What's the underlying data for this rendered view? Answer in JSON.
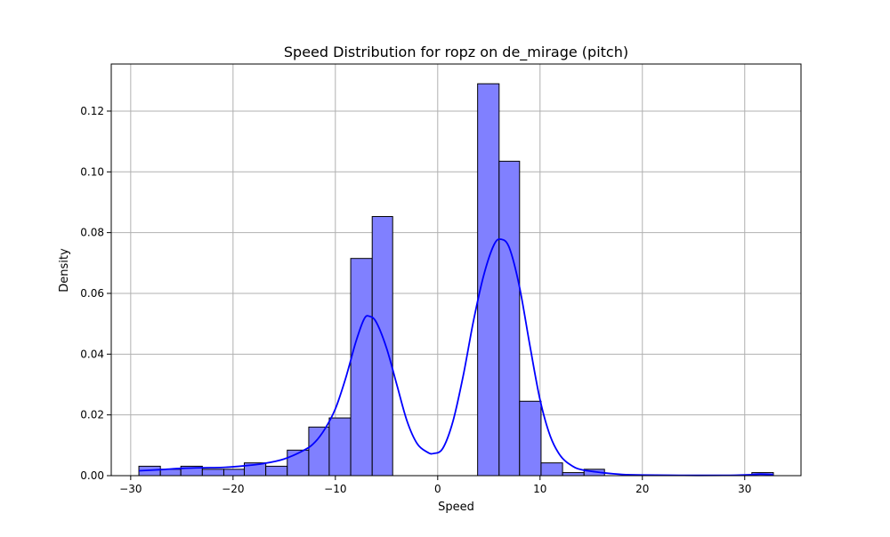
{
  "chart_data": {
    "type": "bar",
    "title": "Speed Distribution for ropz on de_mirage (pitch)",
    "xlabel": "Speed",
    "ylabel": "Density",
    "xlim": [
      -31.9,
      35.5
    ],
    "ylim": [
      0,
      0.1355
    ],
    "xticks": [
      -30,
      -20,
      -10,
      0,
      10,
      20,
      30
    ],
    "xtick_labels": [
      "−30",
      "−20",
      "−10",
      "0",
      "10",
      "20",
      "30"
    ],
    "yticks": [
      0.0,
      0.02,
      0.04,
      0.06,
      0.08,
      0.1,
      0.12
    ],
    "ytick_labels": [
      "0.00",
      "0.02",
      "0.04",
      "0.06",
      "0.08",
      "0.10",
      "0.12"
    ],
    "grid": true,
    "bar_color": "#8080ff",
    "bar_edge_color": "#000000",
    "kde_color": "#0000ff",
    "bins": [
      {
        "x0": -29.2,
        "x1": -27.1,
        "density": 0.0031
      },
      {
        "x0": -27.1,
        "x1": -25.1,
        "density": 0.0021
      },
      {
        "x0": -25.1,
        "x1": -23.0,
        "density": 0.0031
      },
      {
        "x0": -23.0,
        "x1": -20.9,
        "density": 0.0021
      },
      {
        "x0": -20.9,
        "x1": -18.9,
        "density": 0.0021
      },
      {
        "x0": -18.9,
        "x1": -16.8,
        "density": 0.0042
      },
      {
        "x0": -16.8,
        "x1": -14.7,
        "density": 0.0031
      },
      {
        "x0": -14.7,
        "x1": -12.6,
        "density": 0.0084
      },
      {
        "x0": -12.6,
        "x1": -10.6,
        "density": 0.016
      },
      {
        "x0": -10.6,
        "x1": -8.5,
        "density": 0.019
      },
      {
        "x0": -8.5,
        "x1": -6.4,
        "density": 0.0715
      },
      {
        "x0": -6.4,
        "x1": -4.4,
        "density": 0.0853
      },
      {
        "x0": -4.4,
        "x1": -2.3,
        "density": 0
      },
      {
        "x0": -2.3,
        "x1": -0.2,
        "density": 0
      },
      {
        "x0": -0.2,
        "x1": 1.8,
        "density": 0
      },
      {
        "x0": 1.8,
        "x1": 3.9,
        "density": 0
      },
      {
        "x0": 3.9,
        "x1": 6.0,
        "density": 0.129
      },
      {
        "x0": 6.0,
        "x1": 8.0,
        "density": 0.1035
      },
      {
        "x0": 8.0,
        "x1": 10.1,
        "density": 0.0245
      },
      {
        "x0": 10.1,
        "x1": 12.2,
        "density": 0.0042
      },
      {
        "x0": 12.2,
        "x1": 14.3,
        "density": 0.001
      },
      {
        "x0": 14.3,
        "x1": 16.3,
        "density": 0.0021
      },
      {
        "x0": 30.7,
        "x1": 32.8,
        "density": 0.001
      }
    ],
    "kde": [
      {
        "x": -29.2,
        "y": 0.0016
      },
      {
        "x": -27.0,
        "y": 0.002
      },
      {
        "x": -25.0,
        "y": 0.0024
      },
      {
        "x": -23.0,
        "y": 0.0026
      },
      {
        "x": -21.0,
        "y": 0.0027
      },
      {
        "x": -19.0,
        "y": 0.0032
      },
      {
        "x": -17.0,
        "y": 0.004
      },
      {
        "x": -15.0,
        "y": 0.0055
      },
      {
        "x": -13.0,
        "y": 0.0085
      },
      {
        "x": -12.0,
        "y": 0.011
      },
      {
        "x": -11.0,
        "y": 0.0155
      },
      {
        "x": -10.0,
        "y": 0.022
      },
      {
        "x": -9.0,
        "y": 0.032
      },
      {
        "x": -8.0,
        "y": 0.044
      },
      {
        "x": -7.2,
        "y": 0.0515
      },
      {
        "x": -6.7,
        "y": 0.0525
      },
      {
        "x": -6.0,
        "y": 0.0505
      },
      {
        "x": -5.0,
        "y": 0.042
      },
      {
        "x": -4.0,
        "y": 0.03
      },
      {
        "x": -3.0,
        "y": 0.018
      },
      {
        "x": -2.0,
        "y": 0.0105
      },
      {
        "x": -1.0,
        "y": 0.0077
      },
      {
        "x": -0.4,
        "y": 0.0073
      },
      {
        "x": 0.5,
        "y": 0.009
      },
      {
        "x": 1.5,
        "y": 0.018
      },
      {
        "x": 2.5,
        "y": 0.033
      },
      {
        "x": 3.5,
        "y": 0.051
      },
      {
        "x": 4.5,
        "y": 0.066
      },
      {
        "x": 5.5,
        "y": 0.076
      },
      {
        "x": 6.2,
        "y": 0.0778
      },
      {
        "x": 7.0,
        "y": 0.075
      },
      {
        "x": 8.0,
        "y": 0.062
      },
      {
        "x": 9.0,
        "y": 0.043
      },
      {
        "x": 10.0,
        "y": 0.025
      },
      {
        "x": 11.0,
        "y": 0.013
      },
      {
        "x": 12.0,
        "y": 0.0065
      },
      {
        "x": 13.0,
        "y": 0.0035
      },
      {
        "x": 14.0,
        "y": 0.002
      },
      {
        "x": 16.0,
        "y": 0.001
      },
      {
        "x": 18.0,
        "y": 0.0004
      },
      {
        "x": 20.0,
        "y": 0.0002
      },
      {
        "x": 24.0,
        "y": 0.0001
      },
      {
        "x": 28.0,
        "y": 0.0001
      },
      {
        "x": 30.5,
        "y": 0.0003
      },
      {
        "x": 31.5,
        "y": 0.0005
      },
      {
        "x": 32.8,
        "y": 0.0003
      }
    ]
  }
}
